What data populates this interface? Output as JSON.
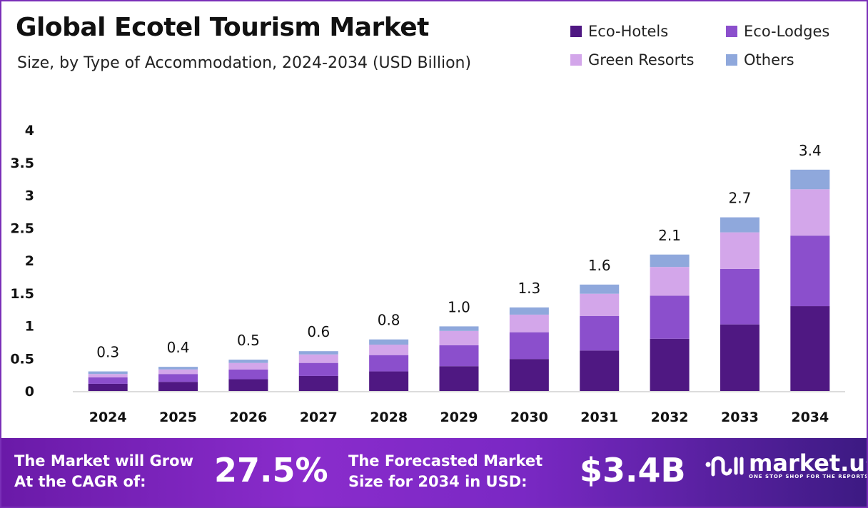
{
  "header": {
    "title": "Global Ecotel Tourism Market",
    "subtitle": "Size, by Type of Accommodation, 2024-2034 (USD Billion)"
  },
  "chart_data": {
    "type": "bar",
    "stacked": true,
    "title": "Global Ecotel Tourism Market",
    "subtitle": "Size, by Type of Accommodation, 2024-2034 (USD Billion)",
    "categories": [
      "2024",
      "2025",
      "2026",
      "2027",
      "2028",
      "2029",
      "2030",
      "2031",
      "2032",
      "2033",
      "2034"
    ],
    "series": [
      {
        "name": "Eco-Hotels",
        "color": "#4f1882",
        "values": [
          0.11,
          0.14,
          0.18,
          0.23,
          0.3,
          0.38,
          0.49,
          0.62,
          0.8,
          1.02,
          1.3
        ]
      },
      {
        "name": "Eco-Lodges",
        "color": "#8b4fcc",
        "values": [
          0.1,
          0.12,
          0.15,
          0.2,
          0.25,
          0.32,
          0.41,
          0.53,
          0.66,
          0.85,
          1.08
        ]
      },
      {
        "name": "Green Resorts",
        "color": "#d3a6ea",
        "values": [
          0.05,
          0.07,
          0.1,
          0.13,
          0.16,
          0.22,
          0.27,
          0.34,
          0.44,
          0.56,
          0.71
        ]
      },
      {
        "name": "Others",
        "color": "#8fa8dc",
        "values": [
          0.04,
          0.04,
          0.05,
          0.05,
          0.08,
          0.07,
          0.11,
          0.14,
          0.19,
          0.23,
          0.3
        ]
      }
    ],
    "totals_labels": [
      "0.3",
      "0.4",
      "0.5",
      "0.6",
      "0.8",
      "1.0",
      "1.3",
      "1.6",
      "2.1",
      "2.7",
      "3.4"
    ],
    "ylim": [
      0,
      4
    ],
    "yticks": [
      "0",
      "0.5",
      "1",
      "1.5",
      "2",
      "2.5",
      "3",
      "3.5",
      "4"
    ],
    "grid": false,
    "legend_position": "top-right",
    "xlabel": "",
    "ylabel": ""
  },
  "footer": {
    "cagr_text_1": "The Market will Grow",
    "cagr_text_2": "At the CAGR of:",
    "cagr_value": "27.5%",
    "forecast_text_1": "The Forecasted Market",
    "forecast_text_2": "Size for 2034 in USD:",
    "forecast_value": "$3.4B",
    "logo_name": "market.us",
    "logo_tagline": "ONE STOP SHOP FOR THE REPORTS"
  }
}
